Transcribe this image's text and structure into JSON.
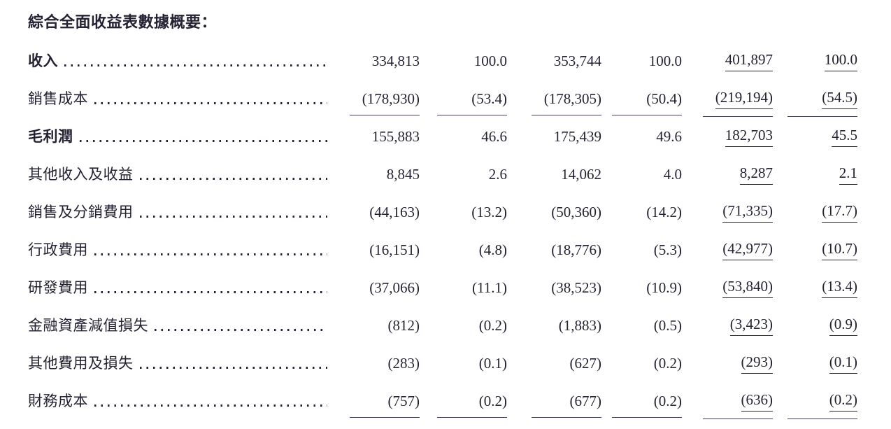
{
  "page": {
    "title": "綜合全面收益表數據概要：",
    "ink_color": "#252233",
    "background": "#ffffff"
  },
  "table": {
    "rows": [
      {
        "label": "收入",
        "bold": true,
        "rule_below": false,
        "values": [
          "334,813",
          "100.0",
          "353,744",
          "100.0",
          "401,897",
          "100.0"
        ]
      },
      {
        "label": "銷售成本",
        "bold": false,
        "rule_below": true,
        "values": [
          "(178,930)",
          "(53.4)",
          "(178,305)",
          "(50.4)",
          "(219,194)",
          "(54.5)"
        ]
      },
      {
        "label": "毛利潤",
        "bold": true,
        "rule_below": false,
        "values": [
          "155,883",
          "46.6",
          "175,439",
          "49.6",
          "182,703",
          "45.5"
        ]
      },
      {
        "label": "其他收入及收益",
        "bold": false,
        "rule_below": false,
        "values": [
          "8,845",
          "2.6",
          "14,062",
          "4.0",
          "8,287",
          "2.1"
        ]
      },
      {
        "label": "銷售及分銷費用",
        "bold": false,
        "rule_below": false,
        "values": [
          "(44,163)",
          "(13.2)",
          "(50,360)",
          "(14.2)",
          "(71,335)",
          "(17.7)"
        ]
      },
      {
        "label": "行政費用",
        "bold": false,
        "rule_below": false,
        "values": [
          "(16,151)",
          "(4.8)",
          "(18,776)",
          "(5.3)",
          "(42,977)",
          "(10.7)"
        ]
      },
      {
        "label": "研發費用",
        "bold": false,
        "rule_below": false,
        "values": [
          "(37,066)",
          "(11.1)",
          "(38,523)",
          "(10.9)",
          "(53,840)",
          "(13.4)"
        ]
      },
      {
        "label": "金融資產減值損失",
        "bold": false,
        "rule_below": false,
        "values": [
          "(812)",
          "(0.2)",
          "(1,883)",
          "(0.5)",
          "(3,423)",
          "(0.9)"
        ]
      },
      {
        "label": "其他費用及損失",
        "bold": false,
        "rule_below": false,
        "values": [
          "(283)",
          "(0.1)",
          "(627)",
          "(0.2)",
          "(293)",
          "(0.1)"
        ]
      },
      {
        "label": "財務成本",
        "bold": false,
        "rule_below": true,
        "values": [
          "(757)",
          "(0.2)",
          "(677)",
          "(0.2)",
          "(636)",
          "(0.2)"
        ]
      }
    ]
  }
}
